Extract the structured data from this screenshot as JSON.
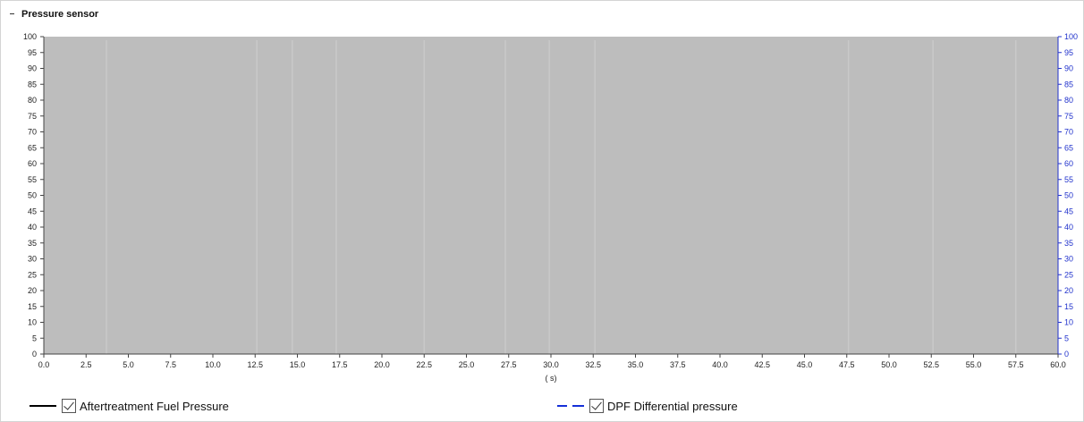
{
  "panel": {
    "title": "Pressure sensor",
    "collapse_icon": "minus-icon"
  },
  "chart_data": {
    "type": "line",
    "title": "",
    "xlabel": "( s)",
    "ylabel": "",
    "xlim": [
      0,
      60
    ],
    "ylim_left": [
      0,
      100
    ],
    "ylim_right": [
      0,
      100
    ],
    "x_ticks": [
      "0.0",
      "2.5",
      "5.0",
      "7.5",
      "10.0",
      "12.5",
      "15.0",
      "17.5",
      "20.0",
      "22.5",
      "25.0",
      "27.5",
      "30.0",
      "32.5",
      "35.0",
      "37.5",
      "40.0",
      "42.5",
      "45.0",
      "47.5",
      "50.0",
      "52.5",
      "55.0",
      "57.5",
      "60.0"
    ],
    "y_ticks_left": [
      "0",
      "5",
      "10",
      "15",
      "20",
      "25",
      "30",
      "35",
      "40",
      "45",
      "50",
      "55",
      "60",
      "65",
      "70",
      "75",
      "80",
      "85",
      "90",
      "95",
      "100"
    ],
    "y_ticks_right": [
      "0",
      "5",
      "10",
      "15",
      "20",
      "25",
      "30",
      "35",
      "40",
      "45",
      "50",
      "55",
      "60",
      "65",
      "70",
      "75",
      "80",
      "85",
      "90",
      "95",
      "100"
    ],
    "right_axis_color": "#2233cc",
    "plot_background": "#bdbdbd",
    "grid": false,
    "legend_position": "bottom",
    "series": [
      {
        "name": "Aftertreatment Fuel Pressure",
        "color": "#000000",
        "style": "solid",
        "axis": "left",
        "checked": true,
        "values": []
      },
      {
        "name": "DPF Differential pressure",
        "color": "#1530d8",
        "style": "dashed",
        "axis": "right",
        "checked": true,
        "values": []
      }
    ]
  }
}
